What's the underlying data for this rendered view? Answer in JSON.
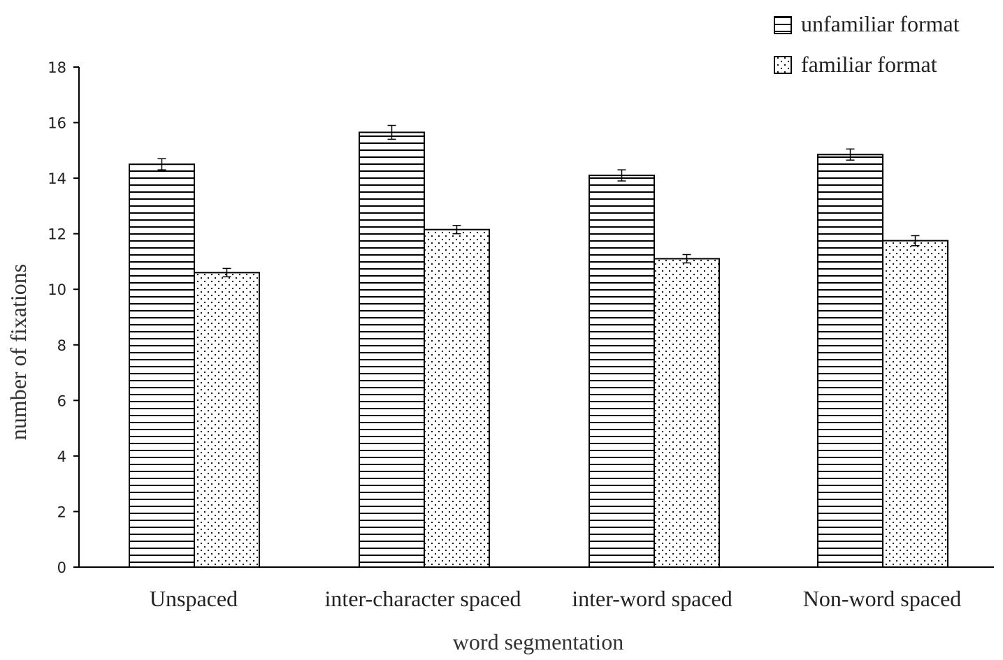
{
  "chart_data": {
    "type": "bar",
    "categories": [
      "Unspaced",
      "inter-character spaced",
      "inter-word spaced",
      "Non-word spaced"
    ],
    "series": [
      {
        "name": "unfamiliar format",
        "pattern": "horizontal-stripes",
        "values": [
          14.5,
          15.65,
          14.1,
          14.85
        ],
        "errors": [
          0.2,
          0.25,
          0.2,
          0.2
        ]
      },
      {
        "name": "familiar format",
        "pattern": "dots",
        "values": [
          10.6,
          12.15,
          11.1,
          11.75
        ],
        "errors": [
          0.15,
          0.15,
          0.15,
          0.18
        ]
      }
    ],
    "xlabel": "word segmentation",
    "ylabel": "number of fixations",
    "ylim": [
      0,
      18
    ],
    "yticks": [
      0,
      2,
      4,
      6,
      8,
      10,
      12,
      14,
      16,
      18
    ],
    "legend_position": "top-right",
    "grid": false,
    "colors": {
      "bar_fill": "#ffffff",
      "bar_stroke": "#000000",
      "text": "#222222"
    }
  }
}
